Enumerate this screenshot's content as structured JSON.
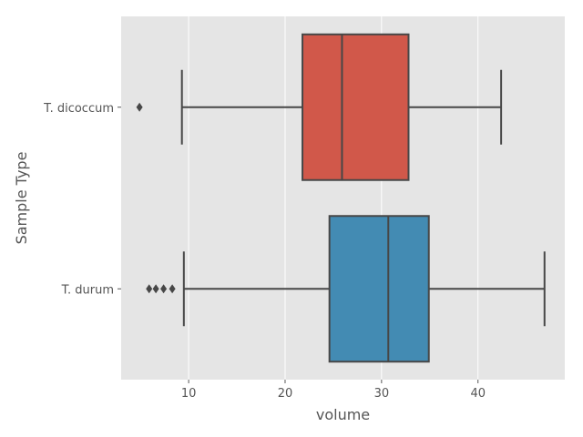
{
  "chart_data": {
    "type": "boxplot",
    "orientation": "horizontal",
    "xlabel": "volume",
    "ylabel": "Sample Type",
    "xlim": [
      3,
      49
    ],
    "xticks": [
      10,
      20,
      30,
      40
    ],
    "grid": true,
    "categories": [
      "T. dicoccum",
      "T. durum"
    ],
    "boxes": [
      {
        "category": "T. dicoccum",
        "whisker_low": 9.3,
        "q1": 21.8,
        "median": 25.9,
        "q3": 32.8,
        "whisker_high": 42.4,
        "outliers": [
          4.9
        ],
        "color": "#D1584A"
      },
      {
        "category": "T. durum",
        "whisker_low": 9.5,
        "q1": 24.6,
        "median": 30.7,
        "q3": 34.9,
        "whisker_high": 46.9,
        "outliers": [
          5.9,
          6.6,
          7.4,
          8.3
        ],
        "color": "#438BB3"
      }
    ],
    "background": "#E5E5E5",
    "grid_color": "#FFFFFF",
    "line_color": "#474747"
  }
}
